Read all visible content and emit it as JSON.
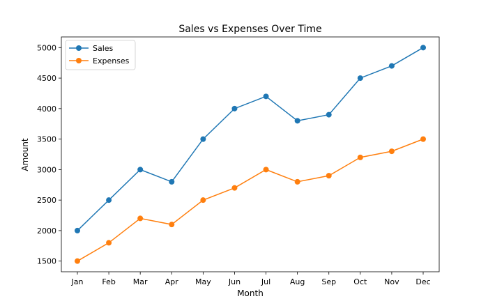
{
  "chart_data": {
    "type": "line",
    "title": "Sales vs Expenses Over Time",
    "xlabel": "Month",
    "ylabel": "Amount",
    "categories": [
      "Jan",
      "Feb",
      "Mar",
      "Apr",
      "May",
      "Jun",
      "Jul",
      "Aug",
      "Sep",
      "Oct",
      "Nov",
      "Dec"
    ],
    "series": [
      {
        "name": "Sales",
        "color": "#1f77b4",
        "values": [
          2000,
          2500,
          3000,
          2800,
          3500,
          4000,
          4200,
          3800,
          3900,
          4500,
          4700,
          5000
        ]
      },
      {
        "name": "Expenses",
        "color": "#ff7f0e",
        "values": [
          1500,
          1800,
          2200,
          2100,
          2500,
          2700,
          3000,
          2800,
          2900,
          3200,
          3300,
          3500
        ]
      }
    ],
    "yticks": [
      1500,
      2000,
      2500,
      3000,
      3500,
      4000,
      4500,
      5000
    ],
    "ylim": [
      1325,
      5175
    ],
    "grid": false,
    "legend": "upper-left",
    "marker": "circle"
  }
}
